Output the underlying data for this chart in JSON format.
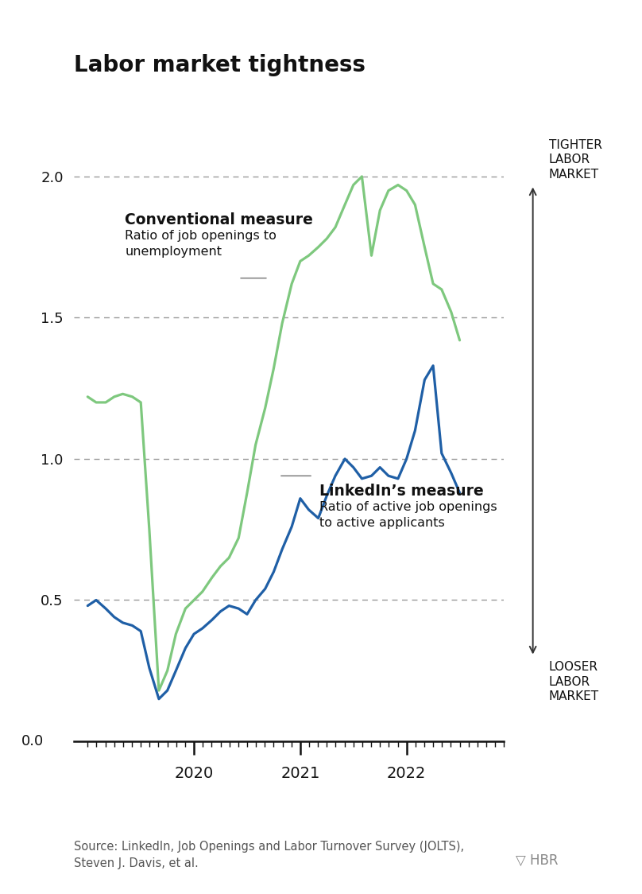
{
  "title": "Labor market tightness",
  "background_color": "#ffffff",
  "green_color": "#7ec87e",
  "blue_color": "#1f5fa6",
  "arrow_color": "#333333",
  "grid_color": "#999999",
  "text_color": "#111111",
  "source_text": "Source: LinkedIn, Job Openings and Labor Turnover Survey (JOLTS),\nSteven J. Davis, et al.",
  "tighter_label": "TIGHTER\nLABOR\nMARKET",
  "looser_label": "LOOSER\nLABOR\nMARKET",
  "conventional_label_bold": "Conventional measure",
  "conventional_label_sub": "Ratio of job openings to\nunemployment",
  "linkedin_label_bold": "LinkedIn’s measure",
  "linkedin_label_sub": "Ratio of active job openings\nto active applicants",
  "yticks": [
    0.0,
    0.5,
    1.0,
    1.5,
    2.0
  ],
  "xtick_labels": [
    "2020",
    "2021",
    "2022"
  ],
  "ylim": [
    -0.05,
    2.15
  ],
  "conventional_x": [
    2019.0,
    2019.08,
    2019.17,
    2019.25,
    2019.33,
    2019.42,
    2019.5,
    2019.58,
    2019.67,
    2019.75,
    2019.83,
    2019.92,
    2020.0,
    2020.08,
    2020.17,
    2020.25,
    2020.33,
    2020.42,
    2020.5,
    2020.58,
    2020.67,
    2020.75,
    2020.83,
    2020.92,
    2021.0,
    2021.08,
    2021.17,
    2021.25,
    2021.33,
    2021.42,
    2021.5,
    2021.58,
    2021.67,
    2021.75,
    2021.83,
    2021.92,
    2022.0,
    2022.08,
    2022.17,
    2022.25,
    2022.33,
    2022.42,
    2022.5
  ],
  "conventional_y": [
    1.22,
    1.2,
    1.2,
    1.22,
    1.23,
    1.22,
    1.2,
    0.75,
    0.18,
    0.25,
    0.38,
    0.47,
    0.5,
    0.53,
    0.58,
    0.62,
    0.65,
    0.72,
    0.88,
    1.05,
    1.18,
    1.32,
    1.48,
    1.62,
    1.7,
    1.72,
    1.75,
    1.78,
    1.82,
    1.9,
    1.97,
    2.0,
    1.72,
    1.88,
    1.95,
    1.97,
    1.95,
    1.9,
    1.75,
    1.62,
    1.6,
    1.52,
    1.42
  ],
  "linkedin_x": [
    2019.0,
    2019.08,
    2019.17,
    2019.25,
    2019.33,
    2019.42,
    2019.5,
    2019.58,
    2019.67,
    2019.75,
    2019.83,
    2019.92,
    2020.0,
    2020.08,
    2020.17,
    2020.25,
    2020.33,
    2020.42,
    2020.5,
    2020.58,
    2020.67,
    2020.75,
    2020.83,
    2020.92,
    2021.0,
    2021.08,
    2021.17,
    2021.25,
    2021.33,
    2021.42,
    2021.5,
    2021.58,
    2021.67,
    2021.75,
    2021.83,
    2021.92,
    2022.0,
    2022.08,
    2022.17,
    2022.25,
    2022.33,
    2022.42,
    2022.5
  ],
  "linkedin_y": [
    0.48,
    0.5,
    0.47,
    0.44,
    0.42,
    0.41,
    0.39,
    0.26,
    0.15,
    0.18,
    0.25,
    0.33,
    0.38,
    0.4,
    0.43,
    0.46,
    0.48,
    0.47,
    0.45,
    0.5,
    0.54,
    0.6,
    0.68,
    0.76,
    0.86,
    0.82,
    0.79,
    0.87,
    0.94,
    1.0,
    0.97,
    0.93,
    0.94,
    0.97,
    0.94,
    0.93,
    1.0,
    1.1,
    1.28,
    1.33,
    1.02,
    0.95,
    0.88
  ],
  "xlim": [
    2018.87,
    2022.75
  ]
}
